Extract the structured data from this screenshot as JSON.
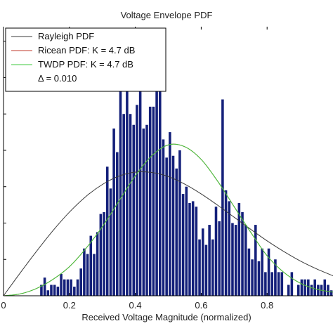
{
  "chart_data": {
    "type": "bar",
    "title": "Voltage Envelope PDF",
    "xlabel": "Received Voltage Magnitude (normalized)",
    "ylabel": "",
    "xlim": [
      0,
      1
    ],
    "ylim": [
      0,
      7.4
    ],
    "xticks": [
      {
        "value": 0.0,
        "label": "0"
      },
      {
        "value": 0.2,
        "label": "0.2"
      },
      {
        "value": 0.4,
        "label": "0.4"
      },
      {
        "value": 0.6,
        "label": "0.6"
      },
      {
        "value": 0.8,
        "label": "0.8"
      }
    ],
    "grid": false,
    "legend_position": "top-left",
    "histogram": {
      "name": "",
      "color": "#14207a",
      "bin_width": 0.01,
      "bins": [
        {
          "x": 0.115,
          "y": 0.3
        },
        {
          "x": 0.125,
          "y": 0.5
        },
        {
          "x": 0.135,
          "y": 0.15
        },
        {
          "x": 0.145,
          "y": 0.3
        },
        {
          "x": 0.155,
          "y": 0.3
        },
        {
          "x": 0.165,
          "y": 0.25
        },
        {
          "x": 0.175,
          "y": 0.6
        },
        {
          "x": 0.185,
          "y": 0.45
        },
        {
          "x": 0.195,
          "y": 0.45
        },
        {
          "x": 0.205,
          "y": 0.45
        },
        {
          "x": 0.215,
          "y": 0.25
        },
        {
          "x": 0.225,
          "y": 0.45
        },
        {
          "x": 0.235,
          "y": 0.75
        },
        {
          "x": 0.245,
          "y": 1.3
        },
        {
          "x": 0.255,
          "y": 1.15
        },
        {
          "x": 0.265,
          "y": 1.65
        },
        {
          "x": 0.275,
          "y": 1.15
        },
        {
          "x": 0.285,
          "y": 1.75
        },
        {
          "x": 0.295,
          "y": 2.25
        },
        {
          "x": 0.305,
          "y": 2.3
        },
        {
          "x": 0.315,
          "y": 3.55
        },
        {
          "x": 0.325,
          "y": 2.95
        },
        {
          "x": 0.335,
          "y": 4.6
        },
        {
          "x": 0.345,
          "y": 3.95
        },
        {
          "x": 0.355,
          "y": 5.7
        },
        {
          "x": 0.365,
          "y": 5.0
        },
        {
          "x": 0.375,
          "y": 6.0
        },
        {
          "x": 0.385,
          "y": 5.0
        },
        {
          "x": 0.395,
          "y": 4.7
        },
        {
          "x": 0.405,
          "y": 5.25
        },
        {
          "x": 0.415,
          "y": 6.95
        },
        {
          "x": 0.425,
          "y": 4.6
        },
        {
          "x": 0.435,
          "y": 4.7
        },
        {
          "x": 0.445,
          "y": 5.2
        },
        {
          "x": 0.455,
          "y": 5.2
        },
        {
          "x": 0.465,
          "y": 5.7
        },
        {
          "x": 0.475,
          "y": 6.9
        },
        {
          "x": 0.485,
          "y": 4.3
        },
        {
          "x": 0.495,
          "y": 3.8
        },
        {
          "x": 0.505,
          "y": 4.5
        },
        {
          "x": 0.515,
          "y": 3.85
        },
        {
          "x": 0.525,
          "y": 3.5
        },
        {
          "x": 0.535,
          "y": 4.0
        },
        {
          "x": 0.545,
          "y": 2.8
        },
        {
          "x": 0.555,
          "y": 3.0
        },
        {
          "x": 0.565,
          "y": 2.55
        },
        {
          "x": 0.575,
          "y": 2.6
        },
        {
          "x": 0.585,
          "y": 2.45
        },
        {
          "x": 0.595,
          "y": 1.55
        },
        {
          "x": 0.605,
          "y": 1.85
        },
        {
          "x": 0.615,
          "y": 1.4
        },
        {
          "x": 0.625,
          "y": 1.95
        },
        {
          "x": 0.635,
          "y": 1.55
        },
        {
          "x": 0.645,
          "y": 2.45
        },
        {
          "x": 0.655,
          "y": 2.05
        },
        {
          "x": 0.665,
          "y": 5.4
        },
        {
          "x": 0.675,
          "y": 2.9
        },
        {
          "x": 0.685,
          "y": 2.6
        },
        {
          "x": 0.695,
          "y": 2.0
        },
        {
          "x": 0.705,
          "y": 1.95
        },
        {
          "x": 0.715,
          "y": 2.55
        },
        {
          "x": 0.725,
          "y": 2.3
        },
        {
          "x": 0.735,
          "y": 1.95
        },
        {
          "x": 0.745,
          "y": 1.3
        },
        {
          "x": 0.755,
          "y": 1.0
        },
        {
          "x": 0.765,
          "y": 1.95
        },
        {
          "x": 0.775,
          "y": 0.95
        },
        {
          "x": 0.785,
          "y": 1.3
        },
        {
          "x": 0.795,
          "y": 0.65
        },
        {
          "x": 0.805,
          "y": 1.3
        },
        {
          "x": 0.815,
          "y": 0.65
        },
        {
          "x": 0.825,
          "y": 1.0
        },
        {
          "x": 0.835,
          "y": 0.65
        },
        {
          "x": 0.845,
          "y": 0.65
        },
        {
          "x": 0.855,
          "y": 0.0
        },
        {
          "x": 0.865,
          "y": 0.3
        },
        {
          "x": 0.875,
          "y": 0.65
        },
        {
          "x": 0.885,
          "y": 0.0
        },
        {
          "x": 0.895,
          "y": 0.3
        },
        {
          "x": 0.905,
          "y": 0.45
        },
        {
          "x": 0.915,
          "y": 0.45
        },
        {
          "x": 0.925,
          "y": 0.45
        },
        {
          "x": 0.935,
          "y": 0.3
        },
        {
          "x": 0.945,
          "y": 0.45
        },
        {
          "x": 0.955,
          "y": 0.3
        },
        {
          "x": 0.965,
          "y": 0.3
        },
        {
          "x": 0.975,
          "y": 0.45
        },
        {
          "x": 0.985,
          "y": 0.3
        },
        {
          "x": 0.995,
          "y": 0.15
        }
      ]
    },
    "series": [
      {
        "name": "Rayleigh PDF",
        "color": "#3a3a3a",
        "x": [
          0,
          0.05,
          0.1,
          0.15,
          0.2,
          0.25,
          0.3,
          0.35,
          0.4,
          0.45,
          0.5,
          0.55,
          0.6,
          0.65,
          0.7,
          0.75,
          0.8,
          0.85,
          0.9,
          0.95,
          1.0
        ],
        "y": [
          0,
          0.62,
          1.22,
          1.79,
          2.3,
          2.73,
          3.06,
          3.29,
          3.4,
          3.39,
          3.28,
          3.07,
          2.8,
          2.49,
          2.16,
          1.83,
          1.51,
          1.22,
          0.96,
          0.74,
          0.55
        ]
      },
      {
        "name": "Ricean PDF:  K = 4.7 dB",
        "color": "#c0392b",
        "x": [
          0,
          0.05,
          0.1,
          0.15,
          0.2,
          0.25,
          0.3,
          0.35,
          0.4,
          0.45,
          0.5,
          0.55,
          0.6,
          0.65,
          0.7,
          0.75,
          0.8,
          0.85,
          0.9,
          0.95,
          1.0
        ],
        "y": [
          0,
          0.05,
          0.2,
          0.45,
          0.8,
          1.3,
          1.9,
          2.6,
          3.3,
          3.85,
          4.15,
          4.1,
          3.75,
          3.15,
          2.45,
          1.75,
          1.1,
          0.65,
          0.35,
          0.18,
          0.1
        ]
      },
      {
        "name": "TWDP PDF:  K = 4.7 dB",
        "color": "#3cc83c",
        "x": [
          0,
          0.05,
          0.1,
          0.15,
          0.2,
          0.25,
          0.3,
          0.35,
          0.4,
          0.45,
          0.5,
          0.55,
          0.6,
          0.65,
          0.7,
          0.75,
          0.8,
          0.85,
          0.9,
          0.95,
          1.0
        ],
        "y": [
          0,
          0.05,
          0.2,
          0.45,
          0.8,
          1.3,
          1.9,
          2.6,
          3.3,
          3.85,
          4.15,
          4.1,
          3.75,
          3.15,
          2.45,
          1.75,
          1.1,
          0.65,
          0.35,
          0.18,
          0.1
        ]
      }
    ],
    "legend_entries": [
      {
        "label": "Rayleigh PDF",
        "color": "#3a3a3a"
      },
      {
        "label": "Ricean PDF:  K = 4.7 dB",
        "color": "#c0392b"
      },
      {
        "label": "TWDP PDF:  K = 4.7 dB",
        "color": "#3cc83c"
      },
      {
        "label": "Δ = 0.010",
        "color": ""
      }
    ]
  }
}
